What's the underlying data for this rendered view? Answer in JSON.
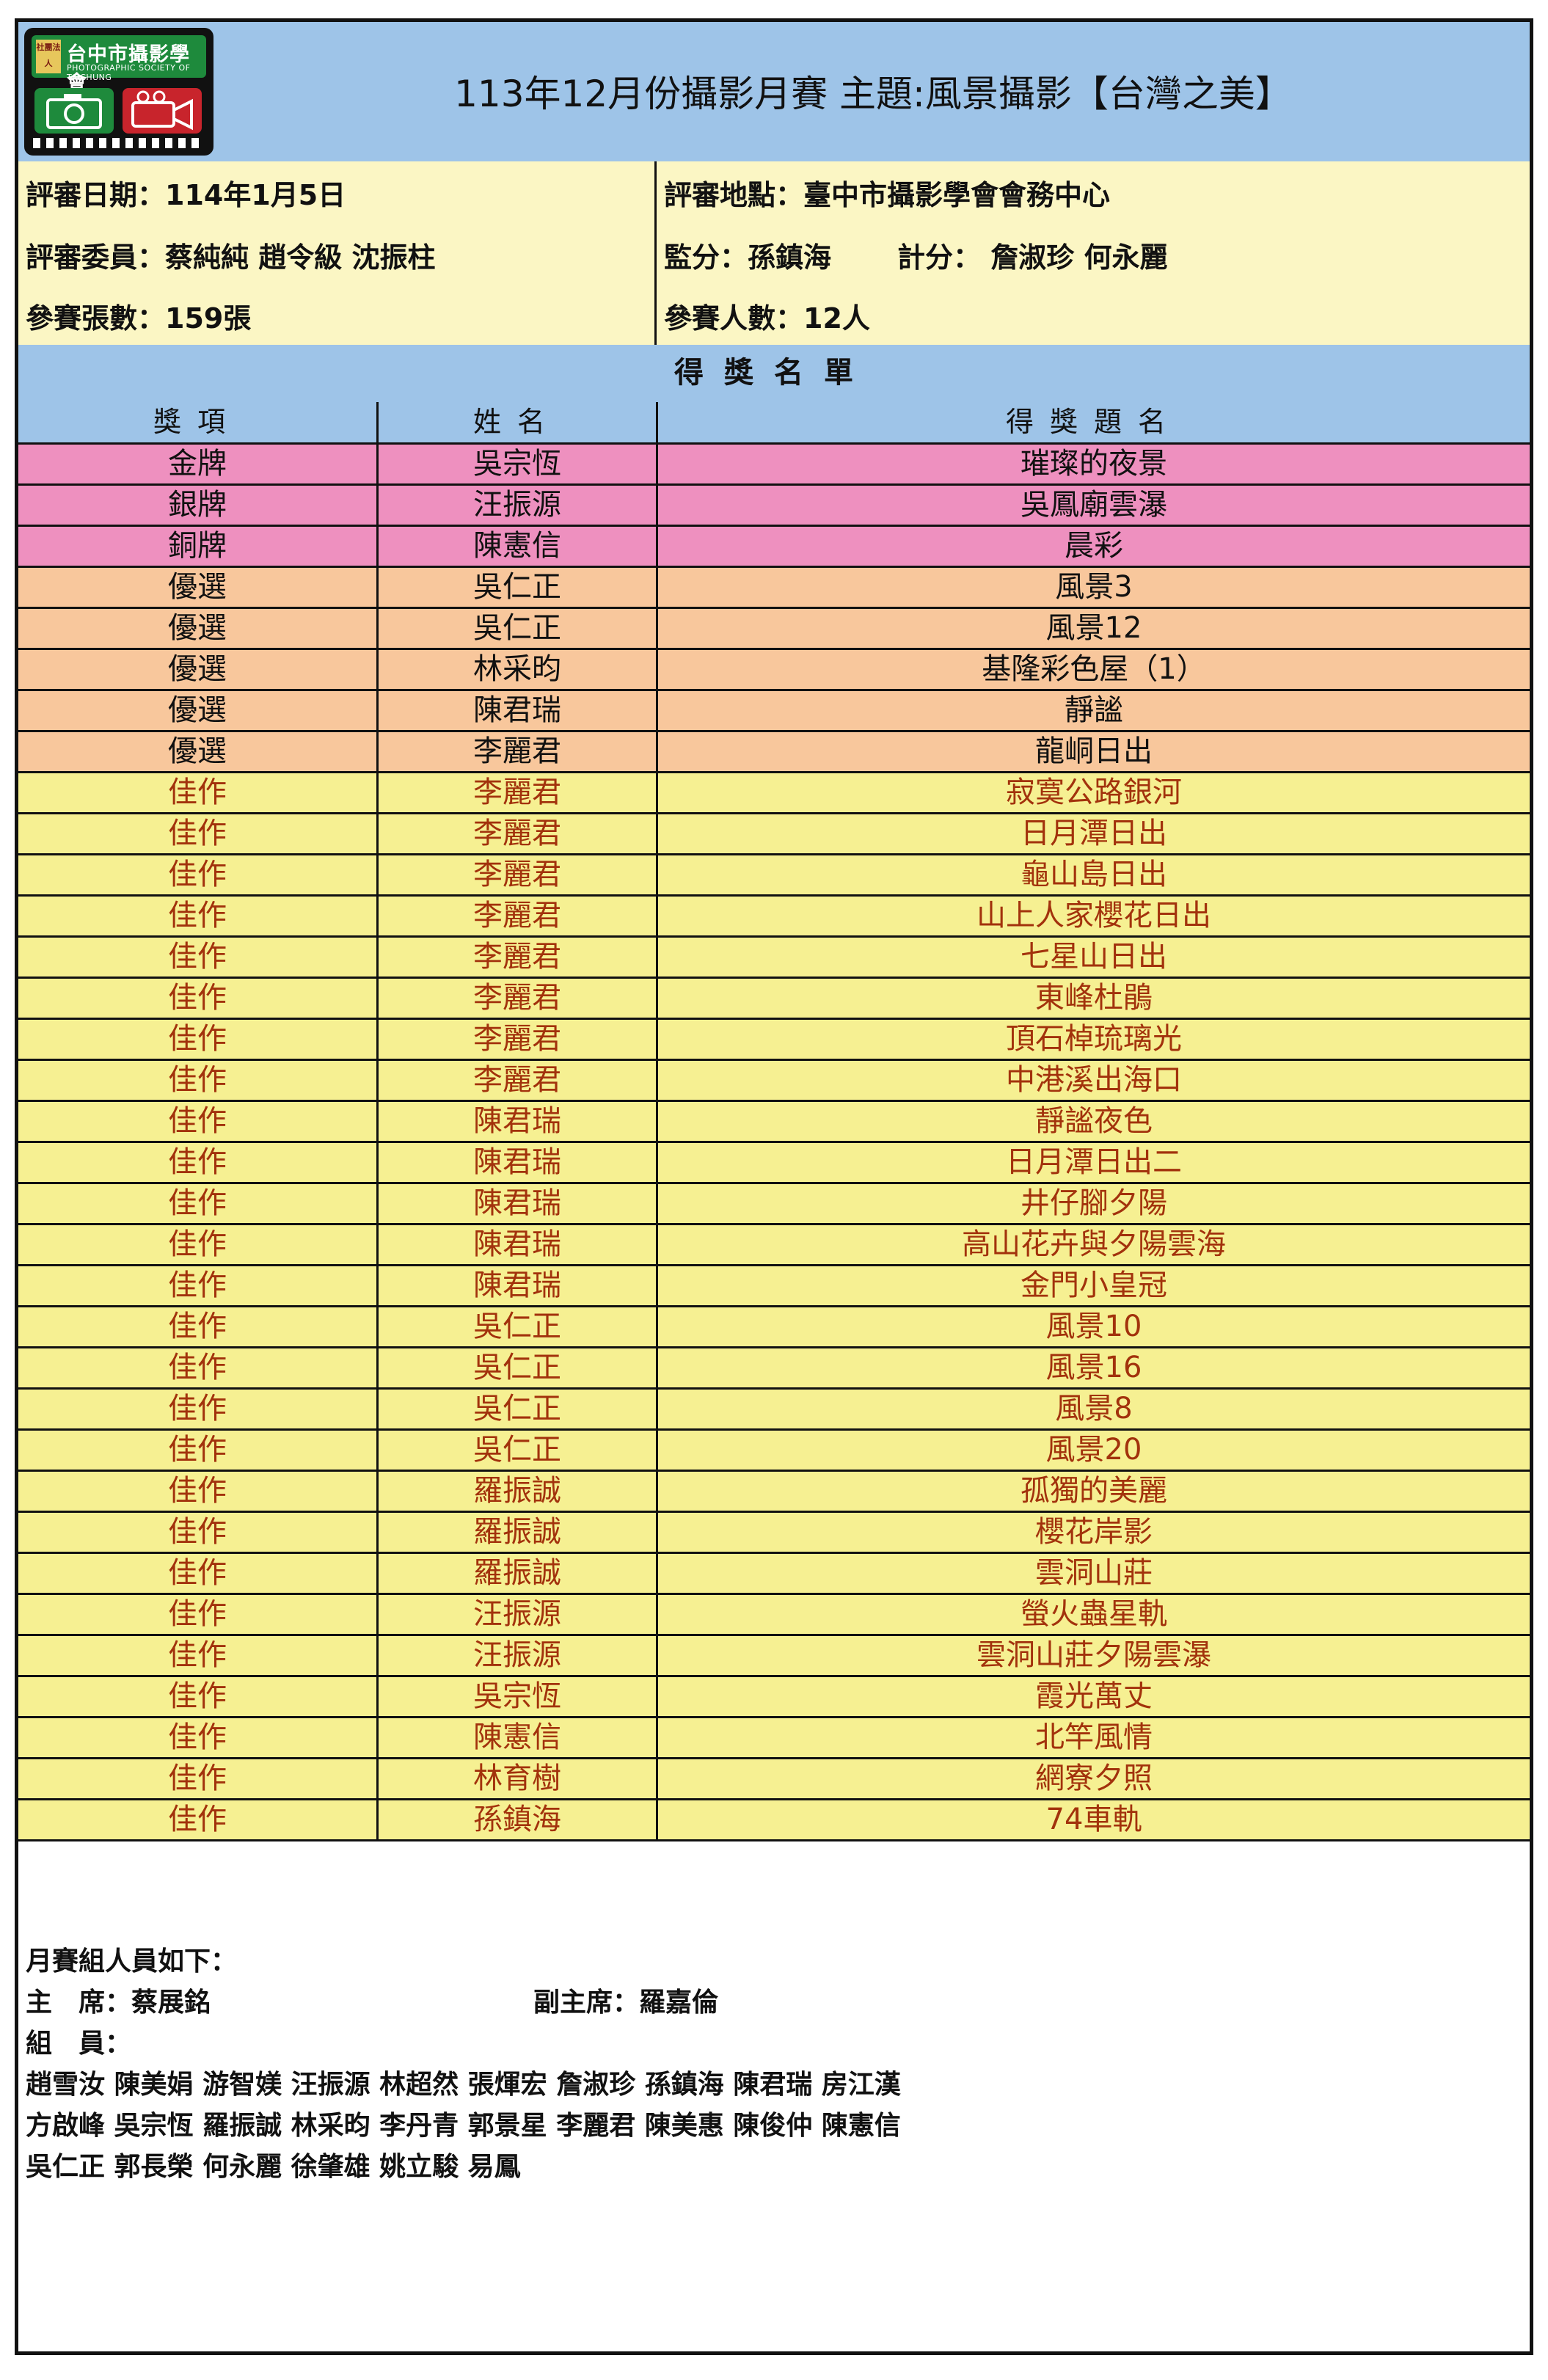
{
  "logo": {
    "seal": "社團法人",
    "name": "台中市攝影學會",
    "english": "PHOTOGRAPHIC SOCIETY OF TAICHUNG"
  },
  "title": "113年12月份攝影月賽 主題:風景攝影【台灣之美】",
  "info": {
    "date": "評審日期：114年1月5日",
    "location": "評審地點：臺中市攝影學會會務中心",
    "judges": "評審委員：蔡純純 趙令級 沈振柱",
    "supervisor": "監分：孫鎮海",
    "scorer": "計分：  詹淑珍 何永麗",
    "entries": "參賽張數：159張",
    "participants": "參賽人數：12人"
  },
  "list_title": "得獎名單",
  "columns": [
    "獎項",
    "姓名",
    "得獎題名"
  ],
  "awards": [
    {
      "award": "金牌",
      "name": "吳宗恆",
      "work": "璀璨的夜景",
      "tier": "gold"
    },
    {
      "award": "銀牌",
      "name": "汪振源",
      "work": "吳鳳廟雲瀑",
      "tier": "gold"
    },
    {
      "award": "銅牌",
      "name": "陳憲信",
      "work": "晨彩",
      "tier": "gold"
    },
    {
      "award": "優選",
      "name": "吳仁正",
      "work": "風景3",
      "tier": "merit"
    },
    {
      "award": "優選",
      "name": "吳仁正",
      "work": "風景12",
      "tier": "merit"
    },
    {
      "award": "優選",
      "name": "林采昀",
      "work": "基隆彩色屋（1）",
      "tier": "merit"
    },
    {
      "award": "優選",
      "name": "陳君瑞",
      "work": "靜謐",
      "tier": "merit"
    },
    {
      "award": "優選",
      "name": "李麗君",
      "work": "龍峒日出",
      "tier": "merit"
    },
    {
      "award": "佳作",
      "name": "李麗君",
      "work": "寂寞公路銀河",
      "tier": "hon"
    },
    {
      "award": "佳作",
      "name": "李麗君",
      "work": "日月潭日出",
      "tier": "hon"
    },
    {
      "award": "佳作",
      "name": "李麗君",
      "work": "龜山島日出",
      "tier": "hon"
    },
    {
      "award": "佳作",
      "name": "李麗君",
      "work": "山上人家櫻花日出",
      "tier": "hon"
    },
    {
      "award": "佳作",
      "name": "李麗君",
      "work": "七星山日出",
      "tier": "hon"
    },
    {
      "award": "佳作",
      "name": "李麗君",
      "work": "東峰杜鵑",
      "tier": "hon"
    },
    {
      "award": "佳作",
      "name": "李麗君",
      "work": "頂石棹琉璃光",
      "tier": "hon"
    },
    {
      "award": "佳作",
      "name": "李麗君",
      "work": "中港溪出海口",
      "tier": "hon"
    },
    {
      "award": "佳作",
      "name": "陳君瑞",
      "work": "靜謐夜色",
      "tier": "hon"
    },
    {
      "award": "佳作",
      "name": "陳君瑞",
      "work": "日月潭日出二",
      "tier": "hon"
    },
    {
      "award": "佳作",
      "name": "陳君瑞",
      "work": "井仔腳夕陽",
      "tier": "hon"
    },
    {
      "award": "佳作",
      "name": "陳君瑞",
      "work": "高山花卉與夕陽雲海",
      "tier": "hon"
    },
    {
      "award": "佳作",
      "name": "陳君瑞",
      "work": "金門小皇冠",
      "tier": "hon"
    },
    {
      "award": "佳作",
      "name": "吳仁正",
      "work": "風景10",
      "tier": "hon"
    },
    {
      "award": "佳作",
      "name": "吳仁正",
      "work": "風景16",
      "tier": "hon"
    },
    {
      "award": "佳作",
      "name": "吳仁正",
      "work": "風景8",
      "tier": "hon"
    },
    {
      "award": "佳作",
      "name": "吳仁正",
      "work": "風景20",
      "tier": "hon"
    },
    {
      "award": "佳作",
      "name": "羅振誠",
      "work": "孤獨的美麗",
      "tier": "hon"
    },
    {
      "award": "佳作",
      "name": "羅振誠",
      "work": "櫻花岸影",
      "tier": "hon"
    },
    {
      "award": "佳作",
      "name": "羅振誠",
      "work": "雲洞山莊",
      "tier": "hon"
    },
    {
      "award": "佳作",
      "name": "汪振源",
      "work": "螢火蟲星軌",
      "tier": "hon"
    },
    {
      "award": "佳作",
      "name": "汪振源",
      "work": "雲洞山莊夕陽雲瀑",
      "tier": "hon"
    },
    {
      "award": "佳作",
      "name": "吳宗恆",
      "work": "霞光萬丈",
      "tier": "hon"
    },
    {
      "award": "佳作",
      "name": "陳憲信",
      "work": "北竿風情",
      "tier": "hon"
    },
    {
      "award": "佳作",
      "name": "林育樹",
      "work": "網寮夕照",
      "tier": "hon"
    },
    {
      "award": "佳作",
      "name": "孫鎮海",
      "work": "74車軌",
      "tier": "hon"
    }
  ],
  "footer": {
    "heading": "月賽組人員如下：",
    "chair": "主　席：蔡展銘",
    "vice_chair": "副主席：羅嘉倫",
    "members_label": "組　員：",
    "members_line1": "趙雪汝 陳美娟 游智媄 汪振源 林超然 張煇宏 詹淑珍 孫鎮海 陳君瑞 房江漢",
    "members_line2": "方啟峰 吳宗恆 羅振誠 林采昀 李丹青 郭景星 李麗君 陳美惠 陳俊仲 陳憲信",
    "members_line3": "吳仁正 郭長榮 何永麗 徐肇雄 姚立駿 易鳳"
  }
}
